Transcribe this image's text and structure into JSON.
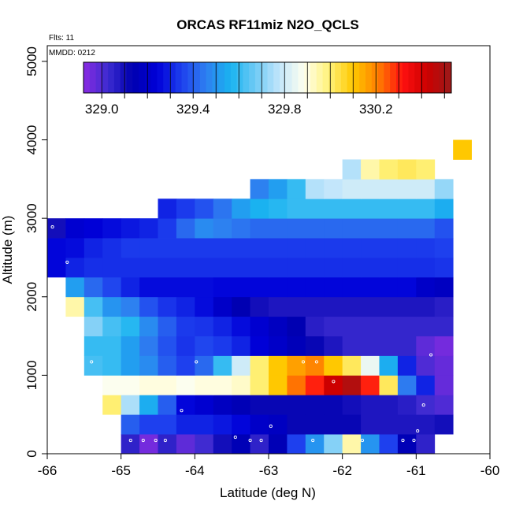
{
  "chart_data": {
    "type": "heatmap",
    "title": "ORCAS RF11miz N2O_QCLS",
    "xlabel": "Latitude (deg N)",
    "ylabel": "Altitude (m)",
    "xlim": [
      -66,
      -60
    ],
    "ylim": [
      0,
      5200
    ],
    "x_ticks": [
      -66,
      -65,
      -64,
      -63,
      -62,
      -61,
      -60
    ],
    "x_tick_labels": [
      "-66",
      "-65",
      "-64",
      "-63",
      "-62",
      "-61",
      "-60"
    ],
    "y_ticks": [
      0,
      1000,
      2000,
      3000,
      4000,
      5000
    ],
    "y_tick_labels": [
      "0",
      "1000",
      "2000",
      "3000",
      "4000",
      "5000"
    ],
    "annotations": {
      "flights": "Flts: 11",
      "date": "MMDD: 0212"
    },
    "colorbar": {
      "range": [
        328.92,
        330.53
      ],
      "tick_values": [
        329.0,
        329.4,
        329.8,
        330.2
      ],
      "tick_labels": [
        "329.0",
        "329.4",
        "329.8",
        "330.2"
      ],
      "colors": [
        "#8a2be2",
        "#3b2bd0",
        "#0000b0",
        "#0000d8",
        "#1e40ee",
        "#2e7ff0",
        "#19b4f0",
        "#6fcaf5",
        "#c2e6fb",
        "#ffffee",
        "#fff27a",
        "#ffc800",
        "#ff8000",
        "#ff1010",
        "#cc0000",
        "#9b1a1a"
      ]
    },
    "cell_size": {
      "lat": 0.25,
      "alt": 250
    },
    "cells": [
      [
        -65.0,
        0,
        329.05
      ],
      [
        -64.75,
        0,
        328.95
      ],
      [
        -64.5,
        0,
        329.05
      ],
      [
        -64.25,
        0,
        328.98
      ],
      [
        -64.0,
        0,
        329.02
      ],
      [
        -63.75,
        0,
        329.1
      ],
      [
        -63.5,
        0,
        329.15
      ],
      [
        -63.25,
        0,
        329.05
      ],
      [
        -63.0,
        0,
        329.15
      ],
      [
        -62.75,
        0,
        329.35
      ],
      [
        -62.5,
        0,
        329.5
      ],
      [
        -62.25,
        0,
        329.7
      ],
      [
        -62.0,
        0,
        329.95
      ],
      [
        -61.75,
        0,
        329.5
      ],
      [
        -61.5,
        0,
        329.35
      ],
      [
        -61.25,
        0,
        329.15
      ],
      [
        -61.0,
        0,
        329.05
      ],
      [
        -65.0,
        250,
        329.4
      ],
      [
        -64.75,
        250,
        329.35
      ],
      [
        -64.5,
        250,
        329.35
      ],
      [
        -64.25,
        250,
        329.3
      ],
      [
        -64.0,
        250,
        329.3
      ],
      [
        -63.75,
        250,
        329.28
      ],
      [
        -63.5,
        250,
        329.25
      ],
      [
        -63.25,
        250,
        329.2
      ],
      [
        -63.0,
        250,
        329.18
      ],
      [
        -62.75,
        250,
        329.12
      ],
      [
        -62.5,
        250,
        329.12
      ],
      [
        -62.25,
        250,
        329.12
      ],
      [
        -62.0,
        250,
        329.12
      ],
      [
        -61.75,
        250,
        329.08
      ],
      [
        -61.5,
        250,
        329.08
      ],
      [
        -61.25,
        250,
        329.08
      ],
      [
        -61.0,
        250,
        329.08
      ],
      [
        -60.75,
        250,
        329.1
      ],
      [
        -65.25,
        500,
        330.0
      ],
      [
        -65.0,
        500,
        329.75
      ],
      [
        -64.75,
        500,
        329.55
      ],
      [
        -64.5,
        500,
        329.4
      ],
      [
        -64.25,
        500,
        329.25
      ],
      [
        -64.0,
        500,
        329.22
      ],
      [
        -63.75,
        500,
        329.18
      ],
      [
        -63.5,
        500,
        329.15
      ],
      [
        -63.25,
        500,
        329.12
      ],
      [
        -63.0,
        500,
        329.12
      ],
      [
        -62.75,
        500,
        329.12
      ],
      [
        -62.5,
        500,
        329.12
      ],
      [
        -62.25,
        500,
        329.12
      ],
      [
        -62.0,
        500,
        329.1
      ],
      [
        -61.75,
        500,
        329.08
      ],
      [
        -61.5,
        500,
        329.08
      ],
      [
        -61.25,
        500,
        329.06
      ],
      [
        -61.0,
        500,
        329.02
      ],
      [
        -60.75,
        500,
        329.0
      ],
      [
        -65.25,
        750,
        329.88
      ],
      [
        -65.0,
        750,
        329.88
      ],
      [
        -64.75,
        750,
        329.9
      ],
      [
        -64.5,
        750,
        329.9
      ],
      [
        -64.25,
        750,
        329.88
      ],
      [
        -64.0,
        750,
        329.9
      ],
      [
        -63.75,
        750,
        329.9
      ],
      [
        -63.5,
        750,
        329.92
      ],
      [
        -63.25,
        750,
        330.0
      ],
      [
        -63.0,
        750,
        330.1
      ],
      [
        -62.75,
        750,
        330.22
      ],
      [
        -62.5,
        750,
        330.3
      ],
      [
        -62.25,
        750,
        330.42
      ],
      [
        -62.0,
        750,
        330.48
      ],
      [
        -61.75,
        750,
        330.3
      ],
      [
        -61.5,
        750,
        330.02
      ],
      [
        -61.25,
        750,
        329.45
      ],
      [
        -61.0,
        750,
        329.3
      ],
      [
        -60.75,
        750,
        328.97
      ],
      [
        -65.5,
        1000,
        329.62
      ],
      [
        -65.25,
        1000,
        329.6
      ],
      [
        -65.0,
        1000,
        329.52
      ],
      [
        -64.75,
        1000,
        329.48
      ],
      [
        -64.5,
        1000,
        329.4
      ],
      [
        -64.25,
        1000,
        329.35
      ],
      [
        -64.0,
        1000,
        329.42
      ],
      [
        -63.75,
        1000,
        329.6
      ],
      [
        -63.5,
        1000,
        329.8
      ],
      [
        -63.25,
        1000,
        330.0
      ],
      [
        -63.0,
        1000,
        330.1
      ],
      [
        -62.75,
        1000,
        330.16
      ],
      [
        -62.5,
        1000,
        330.2
      ],
      [
        -62.25,
        1000,
        330.1
      ],
      [
        -62.0,
        1000,
        330.02
      ],
      [
        -61.75,
        1000,
        329.85
      ],
      [
        -61.5,
        1000,
        329.55
      ],
      [
        -61.25,
        1000,
        329.3
      ],
      [
        -61.0,
        1000,
        329.0
      ],
      [
        -60.75,
        1000,
        328.97
      ],
      [
        -65.5,
        1250,
        329.6
      ],
      [
        -65.25,
        1250,
        329.6
      ],
      [
        -65.0,
        1250,
        329.52
      ],
      [
        -64.75,
        1250,
        329.45
      ],
      [
        -64.5,
        1250,
        329.38
      ],
      [
        -64.25,
        1250,
        329.33
      ],
      [
        -64.0,
        1250,
        329.36
      ],
      [
        -63.75,
        1250,
        329.34
      ],
      [
        -63.5,
        1250,
        329.3
      ],
      [
        -63.25,
        1250,
        329.24
      ],
      [
        -63.0,
        1250,
        329.2
      ],
      [
        -62.75,
        1250,
        329.16
      ],
      [
        -62.5,
        1250,
        329.12
      ],
      [
        -62.25,
        1250,
        329.08
      ],
      [
        -62.0,
        1250,
        329.04
      ],
      [
        -61.75,
        1250,
        329.04
      ],
      [
        -61.5,
        1250,
        329.04
      ],
      [
        -61.25,
        1250,
        329.04
      ],
      [
        -61.0,
        1250,
        328.98
      ],
      [
        -60.75,
        1250,
        328.95
      ],
      [
        -65.5,
        1500,
        329.7
      ],
      [
        -65.25,
        1500,
        329.62
      ],
      [
        -65.0,
        1500,
        329.58
      ],
      [
        -64.75,
        1500,
        329.48
      ],
      [
        -64.5,
        1500,
        329.4
      ],
      [
        -64.25,
        1500,
        329.34
      ],
      [
        -64.0,
        1500,
        329.33
      ],
      [
        -63.75,
        1500,
        329.3
      ],
      [
        -63.5,
        1500,
        329.26
      ],
      [
        -63.25,
        1500,
        329.22
      ],
      [
        -63.0,
        1500,
        329.18
      ],
      [
        -62.75,
        1500,
        329.14
      ],
      [
        -62.5,
        1500,
        329.06
      ],
      [
        -62.25,
        1500,
        329.04
      ],
      [
        -62.0,
        1500,
        329.04
      ],
      [
        -61.75,
        1500,
        329.04
      ],
      [
        -61.5,
        1500,
        329.04
      ],
      [
        -61.25,
        1500,
        329.04
      ],
      [
        -61.0,
        1500,
        329.04
      ],
      [
        -60.75,
        1500,
        329.04
      ],
      [
        -65.75,
        1750,
        329.95
      ],
      [
        -65.5,
        1750,
        329.62
      ],
      [
        -65.25,
        1750,
        329.5
      ],
      [
        -65.0,
        1750,
        329.46
      ],
      [
        -64.75,
        1750,
        329.38
      ],
      [
        -64.5,
        1750,
        329.33
      ],
      [
        -64.25,
        1750,
        329.3
      ],
      [
        -64.0,
        1750,
        329.26
      ],
      [
        -63.75,
        1750,
        329.2
      ],
      [
        -63.5,
        1750,
        329.14
      ],
      [
        -63.25,
        1750,
        329.1
      ],
      [
        -63.0,
        1750,
        329.08
      ],
      [
        -62.75,
        1750,
        329.08
      ],
      [
        -62.5,
        1750,
        329.08
      ],
      [
        -62.25,
        1750,
        329.08
      ],
      [
        -62.0,
        1750,
        329.08
      ],
      [
        -61.75,
        1750,
        329.08
      ],
      [
        -61.5,
        1750,
        329.08
      ],
      [
        -61.25,
        1750,
        329.08
      ],
      [
        -61.0,
        1750,
        329.08
      ],
      [
        -60.75,
        1750,
        329.06
      ],
      [
        -65.75,
        2000,
        329.52
      ],
      [
        -65.5,
        2000,
        329.42
      ],
      [
        -65.25,
        2000,
        329.36
      ],
      [
        -65.0,
        2000,
        329.3
      ],
      [
        -64.75,
        2000,
        329.26
      ],
      [
        -64.5,
        2000,
        329.26
      ],
      [
        -64.25,
        2000,
        329.26
      ],
      [
        -64.0,
        2000,
        329.26
      ],
      [
        -63.75,
        2000,
        329.25
      ],
      [
        -63.5,
        2000,
        329.25
      ],
      [
        -63.25,
        2000,
        329.25
      ],
      [
        -63.0,
        2000,
        329.25
      ],
      [
        -62.75,
        2000,
        329.25
      ],
      [
        -62.5,
        2000,
        329.25
      ],
      [
        -62.25,
        2000,
        329.25
      ],
      [
        -62.0,
        2000,
        329.25
      ],
      [
        -61.75,
        2000,
        329.25
      ],
      [
        -61.5,
        2000,
        329.25
      ],
      [
        -61.25,
        2000,
        329.25
      ],
      [
        -61.0,
        2000,
        329.2
      ],
      [
        -60.75,
        2000,
        329.18
      ],
      [
        -66.0,
        2250,
        329.25
      ],
      [
        -65.75,
        2250,
        329.3
      ],
      [
        -65.5,
        2250,
        329.32
      ],
      [
        -65.25,
        2250,
        329.32
      ],
      [
        -65.0,
        2250,
        329.32
      ],
      [
        -64.75,
        2250,
        329.32
      ],
      [
        -64.5,
        2250,
        329.32
      ],
      [
        -64.25,
        2250,
        329.32
      ],
      [
        -64.0,
        2250,
        329.32
      ],
      [
        -63.75,
        2250,
        329.32
      ],
      [
        -63.5,
        2250,
        329.32
      ],
      [
        -63.25,
        2250,
        329.32
      ],
      [
        -63.0,
        2250,
        329.32
      ],
      [
        -62.75,
        2250,
        329.32
      ],
      [
        -62.5,
        2250,
        329.32
      ],
      [
        -62.25,
        2250,
        329.32
      ],
      [
        -62.0,
        2250,
        329.32
      ],
      [
        -61.75,
        2250,
        329.32
      ],
      [
        -61.5,
        2250,
        329.32
      ],
      [
        -61.25,
        2250,
        329.32
      ],
      [
        -61.0,
        2250,
        329.32
      ],
      [
        -60.75,
        2250,
        329.33
      ],
      [
        -66.0,
        2500,
        329.25
      ],
      [
        -65.75,
        2500,
        329.26
      ],
      [
        -65.5,
        2500,
        329.3
      ],
      [
        -65.25,
        2500,
        329.32
      ],
      [
        -65.0,
        2500,
        329.34
      ],
      [
        -64.75,
        2500,
        329.34
      ],
      [
        -64.5,
        2500,
        329.34
      ],
      [
        -64.25,
        2500,
        329.34
      ],
      [
        -64.0,
        2500,
        329.34
      ],
      [
        -63.75,
        2500,
        329.34
      ],
      [
        -63.5,
        2500,
        329.34
      ],
      [
        -63.25,
        2500,
        329.34
      ],
      [
        -63.0,
        2500,
        329.34
      ],
      [
        -62.75,
        2500,
        329.34
      ],
      [
        -62.5,
        2500,
        329.34
      ],
      [
        -62.25,
        2500,
        329.34
      ],
      [
        -62.0,
        2500,
        329.34
      ],
      [
        -61.75,
        2500,
        329.34
      ],
      [
        -61.5,
        2500,
        329.34
      ],
      [
        -61.25,
        2500,
        329.34
      ],
      [
        -61.0,
        2500,
        329.34
      ],
      [
        -60.75,
        2500,
        329.35
      ],
      [
        -66.0,
        2750,
        329.1
      ],
      [
        -65.75,
        2750,
        329.22
      ],
      [
        -65.5,
        2750,
        329.24
      ],
      [
        -65.25,
        2750,
        329.26
      ],
      [
        -65.0,
        2750,
        329.28
      ],
      [
        -64.75,
        2750,
        329.3
      ],
      [
        -64.5,
        2750,
        329.34
      ],
      [
        -64.25,
        2750,
        329.42
      ],
      [
        -64.0,
        2750,
        329.48
      ],
      [
        -63.75,
        2750,
        329.46
      ],
      [
        -63.5,
        2750,
        329.44
      ],
      [
        -63.25,
        2750,
        329.42
      ],
      [
        -63.0,
        2750,
        329.42
      ],
      [
        -62.75,
        2750,
        329.42
      ],
      [
        -62.5,
        2750,
        329.42
      ],
      [
        -62.25,
        2750,
        329.42
      ],
      [
        -62.0,
        2750,
        329.42
      ],
      [
        -61.75,
        2750,
        329.42
      ],
      [
        -61.5,
        2750,
        329.42
      ],
      [
        -61.25,
        2750,
        329.42
      ],
      [
        -61.0,
        2750,
        329.42
      ],
      [
        -60.75,
        2750,
        329.38
      ],
      [
        -64.5,
        3000,
        329.3
      ],
      [
        -64.25,
        3000,
        329.34
      ],
      [
        -64.0,
        3000,
        329.38
      ],
      [
        -63.75,
        3000,
        329.44
      ],
      [
        -63.5,
        3000,
        329.52
      ],
      [
        -63.25,
        3000,
        329.56
      ],
      [
        -63.0,
        3000,
        329.58
      ],
      [
        -62.75,
        3000,
        329.6
      ],
      [
        -62.5,
        3000,
        329.6
      ],
      [
        -62.25,
        3000,
        329.6
      ],
      [
        -62.0,
        3000,
        329.6
      ],
      [
        -61.75,
        3000,
        329.6
      ],
      [
        -61.5,
        3000,
        329.6
      ],
      [
        -61.25,
        3000,
        329.6
      ],
      [
        -61.0,
        3000,
        329.6
      ],
      [
        -60.75,
        3000,
        329.55
      ],
      [
        -63.25,
        3250,
        329.46
      ],
      [
        -63.0,
        3250,
        329.52
      ],
      [
        -62.75,
        3250,
        329.6
      ],
      [
        -62.5,
        3250,
        329.76
      ],
      [
        -62.25,
        3250,
        329.78
      ],
      [
        -62.0,
        3250,
        329.8
      ],
      [
        -61.75,
        3250,
        329.8
      ],
      [
        -61.5,
        3250,
        329.8
      ],
      [
        -61.25,
        3250,
        329.8
      ],
      [
        -61.0,
        3250,
        329.8
      ],
      [
        -60.75,
        3250,
        329.72
      ],
      [
        -62.0,
        3500,
        329.76
      ],
      [
        -61.75,
        3500,
        329.95
      ],
      [
        -61.5,
        3500,
        330.0
      ],
      [
        -61.25,
        3500,
        330.02
      ],
      [
        -61.0,
        3500,
        330.0
      ],
      [
        -60.5,
        3750,
        330.1
      ]
    ],
    "points": [
      [
        -64.87,
        170
      ],
      [
        -64.7,
        170
      ],
      [
        -64.53,
        170
      ],
      [
        -64.4,
        170
      ],
      [
        -63.45,
        210
      ],
      [
        -63.25,
        170
      ],
      [
        -63.1,
        170
      ],
      [
        -62.4,
        170
      ],
      [
        -61.73,
        170
      ],
      [
        -61.18,
        170
      ],
      [
        -61.03,
        170
      ],
      [
        -62.97,
        350
      ],
      [
        -60.98,
        290
      ],
      [
        -64.18,
        550
      ],
      [
        -62.12,
        920
      ],
      [
        -60.9,
        620
      ],
      [
        -65.4,
        1170
      ],
      [
        -63.98,
        1170
      ],
      [
        -62.53,
        1170
      ],
      [
        -62.35,
        1170
      ],
      [
        -60.8,
        1260
      ],
      [
        -65.73,
        2440
      ],
      [
        -65.93,
        2890
      ],
      [
        -60.55,
        3900
      ]
    ]
  }
}
